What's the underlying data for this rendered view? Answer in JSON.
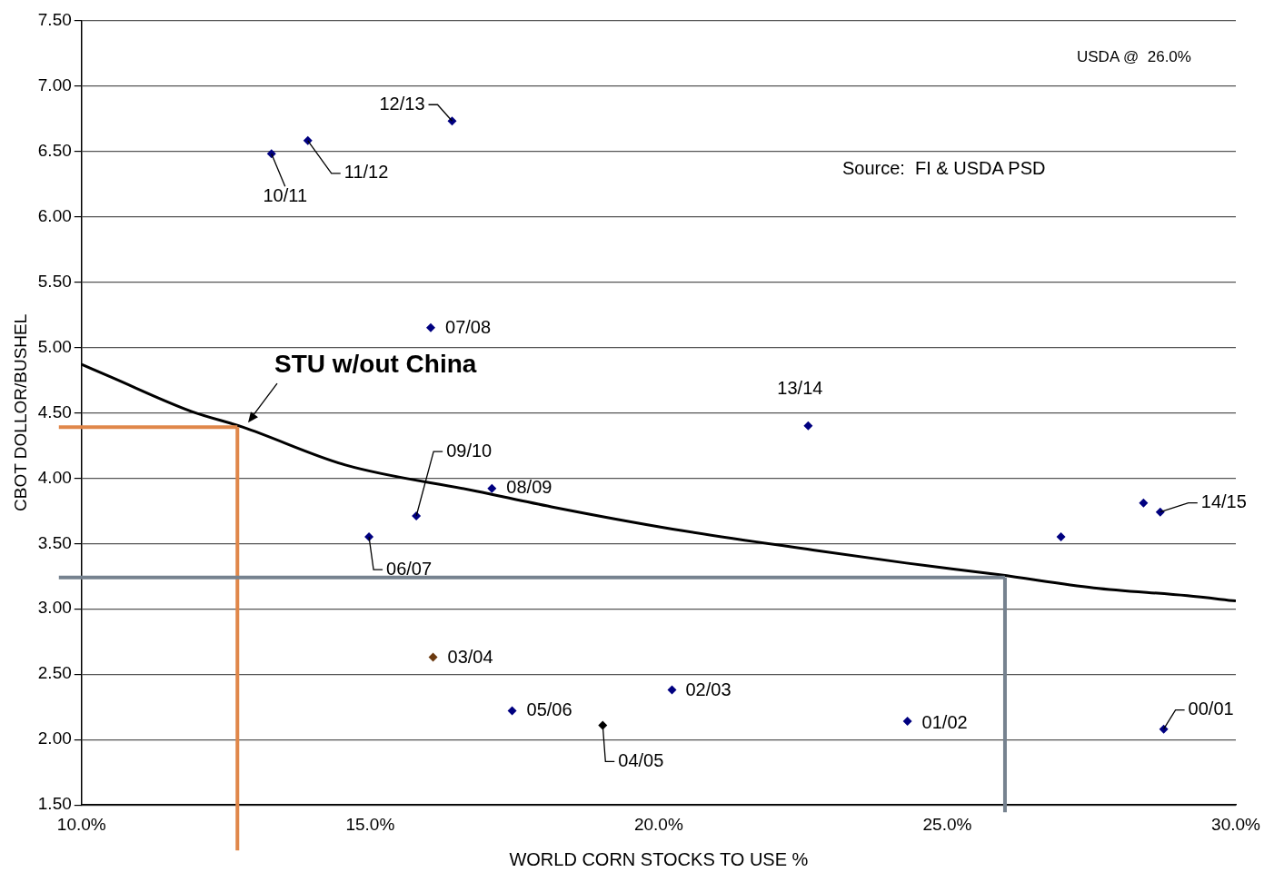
{
  "chart_data": {
    "type": "scatter",
    "xlabel": "WORLD CORN STOCKS TO USE %",
    "ylabel": "CBOT DOLLOR/BUSHEL",
    "xlim": [
      10,
      30
    ],
    "xticks": [
      {
        "value": 10,
        "label": "10.0%"
      },
      {
        "value": 15,
        "label": "15.0%"
      },
      {
        "value": 20,
        "label": "20.0%"
      },
      {
        "value": 25,
        "label": "25.0%"
      },
      {
        "value": 30,
        "label": "30.0%"
      }
    ],
    "ylim": [
      1.5,
      7.5
    ],
    "yticks": [
      {
        "value": 1.5,
        "label": "1.50"
      },
      {
        "value": 2,
        "label": "2.00"
      },
      {
        "value": 2.5,
        "label": "2.50"
      },
      {
        "value": 3,
        "label": "3.00"
      },
      {
        "value": 3.5,
        "label": "3.50"
      },
      {
        "value": 4,
        "label": "4.00"
      },
      {
        "value": 4.5,
        "label": "4.50"
      },
      {
        "value": 5,
        "label": "5.00"
      },
      {
        "value": 5.5,
        "label": "5.50"
      },
      {
        "value": 6,
        "label": "6.00"
      },
      {
        "value": 6.5,
        "label": "6.50"
      },
      {
        "value": 7,
        "label": "7.00"
      },
      {
        "value": 7.5,
        "label": "7.50"
      }
    ],
    "grid": "y",
    "legend": false,
    "marker": "diamond",
    "series": [
      {
        "type": "scatter",
        "x": [
          16.42,
          13.92,
          13.29,
          16.05,
          22.59,
          15.8,
          17.11,
          14.98,
          26.97,
          28.4,
          28.69,
          16.09,
          20.23,
          17.46,
          19.03,
          24.31,
          28.75
        ],
        "values": [
          6.73,
          6.58,
          6.48,
          5.15,
          4.4,
          3.71,
          3.92,
          3.55,
          3.55,
          3.81,
          3.74,
          2.63,
          2.38,
          2.22,
          2.11,
          2.14,
          2.08
        ],
        "colors": [
          "#000080",
          "#000080",
          "#000080",
          "#000080",
          "#000080",
          "#000080",
          "#000080",
          "#000080",
          "#000080",
          "#000080",
          "#000080",
          "#6b3a10",
          "#000080",
          "#000080",
          "#000000",
          "#000080",
          "#000080"
        ]
      },
      {
        "type": "line",
        "x": [
          10,
          10.52,
          11.9,
          12.79,
          14.57,
          16.84,
          18.14,
          20.24,
          22.67,
          24.29,
          25.91,
          27.54,
          29.16,
          30
        ],
        "values": [
          4.87,
          4.77,
          4.51,
          4.39,
          4.1,
          3.9,
          3.78,
          3.61,
          3.45,
          3.35,
          3.26,
          3.16,
          3.1,
          3.06
        ],
        "color": "#000000",
        "marker": "none",
        "line_style": "solid"
      }
    ],
    "ref_lines": [
      {
        "axis": "y",
        "value": 4.39,
        "color": "#e0874a"
      },
      {
        "axis": "x",
        "value": 12.7,
        "color": "#e0874a"
      },
      {
        "axis": "y",
        "value": 3.24,
        "color": "#76828f"
      },
      {
        "axis": "x",
        "value": 26,
        "color": "#76828f"
      }
    ],
    "annotations": [
      {
        "text": "12/13",
        "x": 16.42,
        "y": 6.73
      },
      {
        "text": "11/12",
        "x": 13.92,
        "y": 6.58
      },
      {
        "text": "10/11",
        "x": 13.29,
        "y": 6.48
      },
      {
        "text": "07/08",
        "x": 16.05,
        "y": 5.15
      },
      {
        "text": "13/14",
        "x": 22.59,
        "y": 4.4
      },
      {
        "text": "09/10",
        "x": 15.8,
        "y": 3.71
      },
      {
        "text": "08/09",
        "x": 17.11,
        "y": 3.92
      },
      {
        "text": "06/07",
        "x": 14.98,
        "y": 3.55
      },
      {
        "text": "14/15",
        "x": 28.69,
        "y": 3.74
      },
      {
        "text": "03/04",
        "x": 16.09,
        "y": 2.63
      },
      {
        "text": "02/03",
        "x": 20.23,
        "y": 2.38
      },
      {
        "text": "05/06",
        "x": 17.46,
        "y": 2.22
      },
      {
        "text": "04/05",
        "x": 19.03,
        "y": 2.11
      },
      {
        "text": "01/02",
        "x": 24.31,
        "y": 2.14
      },
      {
        "text": "00/01",
        "x": 28.75,
        "y": 2.08
      },
      {
        "text": "STU w/out China",
        "x": 12.79,
        "y": 4.39
      },
      "USDA @  26.0%",
      "Source:  FI & USDA PSD"
    ]
  }
}
